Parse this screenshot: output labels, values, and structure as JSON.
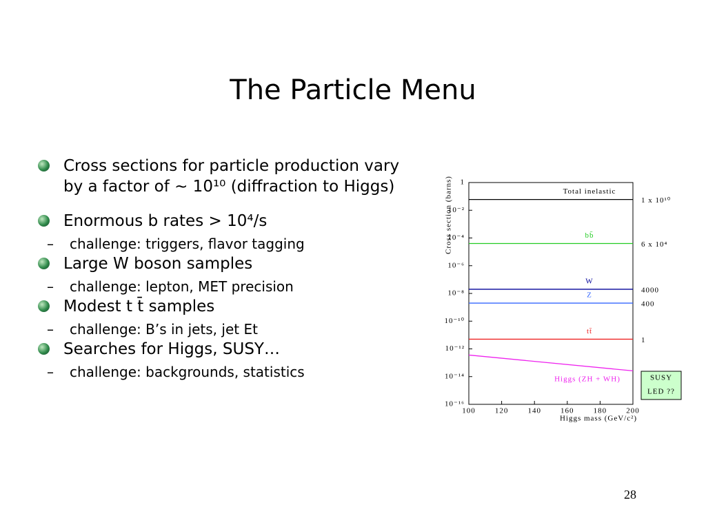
{
  "title": "The Particle Menu",
  "bullets": [
    {
      "text": "Cross sections for particle production vary by a factor of ~ 10¹⁰ (diffraction to Higgs)"
    },
    {
      "text": "Enormous b rates > 10⁴/s",
      "sub": "challenge:  triggers, flavor tagging"
    },
    {
      "text": "Large W boson samples",
      "sub": "challenge:  lepton, MET precision"
    },
    {
      "text": "Modest t t̄ samples",
      "sub": "challenge:  B’s in jets, jet Et"
    },
    {
      "text": "Searches for Higgs, SUSY…",
      "sub": "challenge:  backgrounds, statistics"
    }
  ],
  "chart_data": {
    "type": "line",
    "x_label": "Higgs mass (GeV/c²)",
    "y_label": "Cross section (barns)",
    "x": [
      100,
      200
    ],
    "log_y": true,
    "xlim": [
      100,
      200
    ],
    "xticks": [
      100,
      120,
      140,
      160,
      180,
      200
    ],
    "ylim": [
      1e-16,
      1
    ],
    "yticks": [
      1,
      {
        "value": 0.01,
        "label": "10⁻²"
      },
      {
        "value": 0.0001,
        "label": "10⁻⁴"
      },
      {
        "value": 1e-06,
        "label": "10⁻⁶"
      },
      {
        "value": 1e-08,
        "label": "10⁻⁸"
      },
      {
        "value": 1e-10,
        "label": "10⁻¹⁰"
      },
      {
        "value": 1e-12,
        "label": "10⁻¹²"
      },
      {
        "value": 1e-14,
        "label": "10⁻¹⁴"
      },
      {
        "value": 1e-16,
        "label": "10⁻¹⁶"
      }
    ],
    "series": [
      {
        "name": "Total inelastic",
        "color": "#000000",
        "values": [
          0.06,
          0.06
        ],
        "note": "1 x 10¹⁰"
      },
      {
        "name": "bb̄",
        "color": "#22cc22",
        "values": [
          4e-05,
          4e-05
        ],
        "note": "6 x 10⁴"
      },
      {
        "name": "W",
        "color": "#000099",
        "values": [
          2e-08,
          2e-08
        ],
        "note": "4000"
      },
      {
        "name": "Z",
        "color": "#3366ff",
        "values": [
          2e-09,
          2e-09
        ],
        "note": "400"
      },
      {
        "name": "tt̄",
        "color": "#ee2222",
        "values": [
          5e-12,
          5e-12
        ],
        "note": "1"
      },
      {
        "name": "Higgs (ZH + WH)",
        "color": "#ee22ee",
        "values": [
          3.6e-13,
          2.6e-14
        ]
      }
    ],
    "annotation": [
      "SUSY",
      "LED ??"
    ]
  },
  "page_number": "28"
}
